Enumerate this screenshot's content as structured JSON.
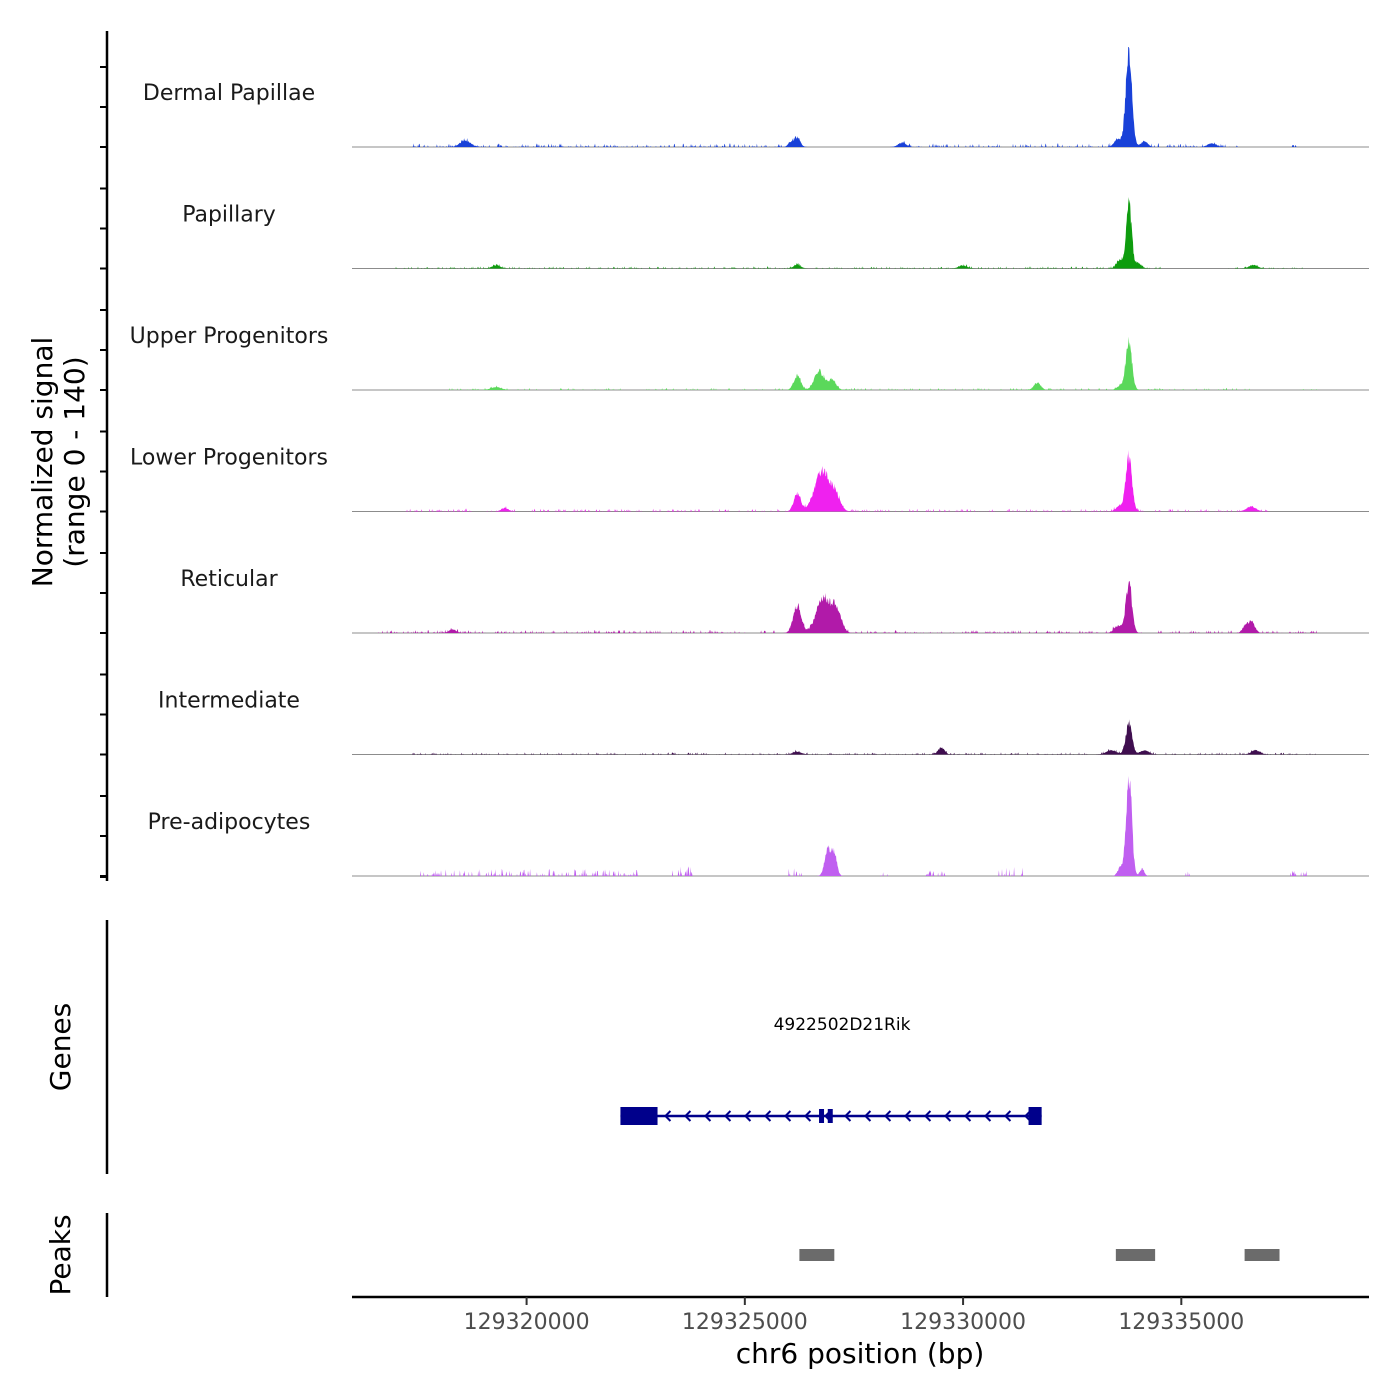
{
  "chart_data": {
    "type": "area",
    "title": "",
    "ylabel_line1": "Normalized signal",
    "ylabel_line2": "(range 0 - 140)",
    "ylim": [
      0,
      140
    ],
    "xlabel": "chr6 position (bp)",
    "xlim": [
      129316000,
      129339300
    ],
    "x_ticks": [
      129320000,
      129325000,
      129330000,
      129335000
    ],
    "x_tick_labels": [
      "129320000",
      "129325000",
      "129330000",
      "129335000"
    ],
    "series": [
      {
        "name": "Dermal Papillae",
        "color": "#1941d8",
        "peaks": [
          [
            129333800,
            140,
            70
          ],
          [
            129333550,
            12,
            80
          ],
          [
            129334150,
            8,
            80
          ],
          [
            129318600,
            9,
            120
          ],
          [
            129326200,
            12,
            70
          ],
          [
            129326050,
            6,
            60
          ],
          [
            129328600,
            6,
            90
          ],
          [
            129335700,
            5,
            100
          ]
        ],
        "noise": [
          [
            129317300,
            129326300,
            0.55,
            5
          ],
          [
            129328500,
            129333400,
            0.5,
            5
          ],
          [
            129334300,
            129336300,
            0.55,
            5
          ],
          [
            129337500,
            129337700,
            1,
            4
          ]
        ]
      },
      {
        "name": "Papillary",
        "color": "#0e9c0e",
        "peaks": [
          [
            129333800,
            90,
            60
          ],
          [
            129333600,
            12,
            80
          ],
          [
            129334000,
            8,
            80
          ],
          [
            129336650,
            5,
            100
          ],
          [
            129326200,
            5,
            80
          ],
          [
            129319300,
            4,
            100
          ],
          [
            129330000,
            4,
            100
          ]
        ],
        "noise": [
          [
            129317000,
            129334600,
            0.45,
            3
          ],
          [
            129336000,
            129337800,
            0.35,
            2
          ]
        ]
      },
      {
        "name": "Upper Progenitors",
        "color": "#5bd85b",
        "peaks": [
          [
            129333800,
            65,
            70
          ],
          [
            129326200,
            20,
            80
          ],
          [
            129326700,
            26,
            110
          ],
          [
            129327000,
            14,
            90
          ],
          [
            129331700,
            10,
            80
          ],
          [
            129333600,
            6,
            80
          ],
          [
            129319300,
            4,
            120
          ]
        ],
        "noise": [
          [
            129318200,
            129336600,
            0.35,
            3
          ],
          [
            129337700,
            129338200,
            0.5,
            2
          ]
        ]
      },
      {
        "name": "Lower Progenitors",
        "color": "#ef21ef",
        "peaks": [
          [
            129333800,
            75,
            70
          ],
          [
            129326200,
            25,
            80
          ],
          [
            129326750,
            55,
            160
          ],
          [
            129327050,
            25,
            120
          ],
          [
            129336600,
            7,
            110
          ],
          [
            129333600,
            8,
            90
          ],
          [
            129319500,
            5,
            80
          ]
        ],
        "noise": [
          [
            129317200,
            129337000,
            0.4,
            4
          ]
        ]
      },
      {
        "name": "Reticular",
        "color": "#b11aa9",
        "peaks": [
          [
            129333800,
            70,
            70
          ],
          [
            129326200,
            38,
            90
          ],
          [
            129326800,
            50,
            160
          ],
          [
            129327100,
            30,
            110
          ],
          [
            129333550,
            10,
            90
          ],
          [
            129336600,
            16,
            80
          ],
          [
            129336450,
            8,
            60
          ],
          [
            129318300,
            5,
            80
          ]
        ],
        "noise": [
          [
            129316600,
            129338100,
            0.45,
            4
          ]
        ]
      },
      {
        "name": "Intermediate",
        "color": "#3f0e4f",
        "peaks": [
          [
            129333800,
            45,
            70
          ],
          [
            129333400,
            6,
            120
          ],
          [
            129334150,
            6,
            100
          ],
          [
            129329500,
            10,
            70
          ],
          [
            129336700,
            6,
            100
          ],
          [
            129326200,
            4,
            100
          ]
        ],
        "noise": [
          [
            129317300,
            129338100,
            0.4,
            3
          ]
        ]
      },
      {
        "name": "Pre-adipocytes",
        "color": "#c05ff0",
        "peaks": [
          [
            129333800,
            140,
            65
          ],
          [
            129326900,
            38,
            70
          ],
          [
            129327050,
            30,
            60
          ],
          [
            129333600,
            12,
            60
          ],
          [
            129334100,
            10,
            50
          ]
        ],
        "noise": [
          [
            129317500,
            129322600,
            0.55,
            10
          ],
          [
            129323300,
            129323800,
            0.7,
            14
          ],
          [
            129326000,
            129326300,
            0.5,
            14
          ],
          [
            129328100,
            129328300,
            0.5,
            8
          ],
          [
            129329100,
            129329600,
            0.5,
            8
          ],
          [
            129330800,
            129331400,
            0.5,
            14
          ],
          [
            129335100,
            129335200,
            1,
            8
          ],
          [
            129337500,
            129337900,
            0.6,
            8
          ]
        ]
      }
    ],
    "genes": [
      {
        "name": "4922502D21Rik",
        "strand": "-",
        "start": 129322150,
        "end": 129331800,
        "color": "#00008b",
        "exons": [
          [
            129322150,
            129323000
          ],
          [
            129326900,
            129326950
          ],
          [
            129326700,
            129326800
          ],
          [
            129331500,
            129331800
          ]
        ]
      }
    ],
    "gene_track_label": "Genes",
    "peaks_track_label": "Peaks",
    "peak_regions": [
      [
        129326250,
        129327050
      ],
      [
        129333500,
        129334400
      ],
      [
        129336450,
        129337250
      ]
    ],
    "peak_color": "#6b6b6b"
  }
}
